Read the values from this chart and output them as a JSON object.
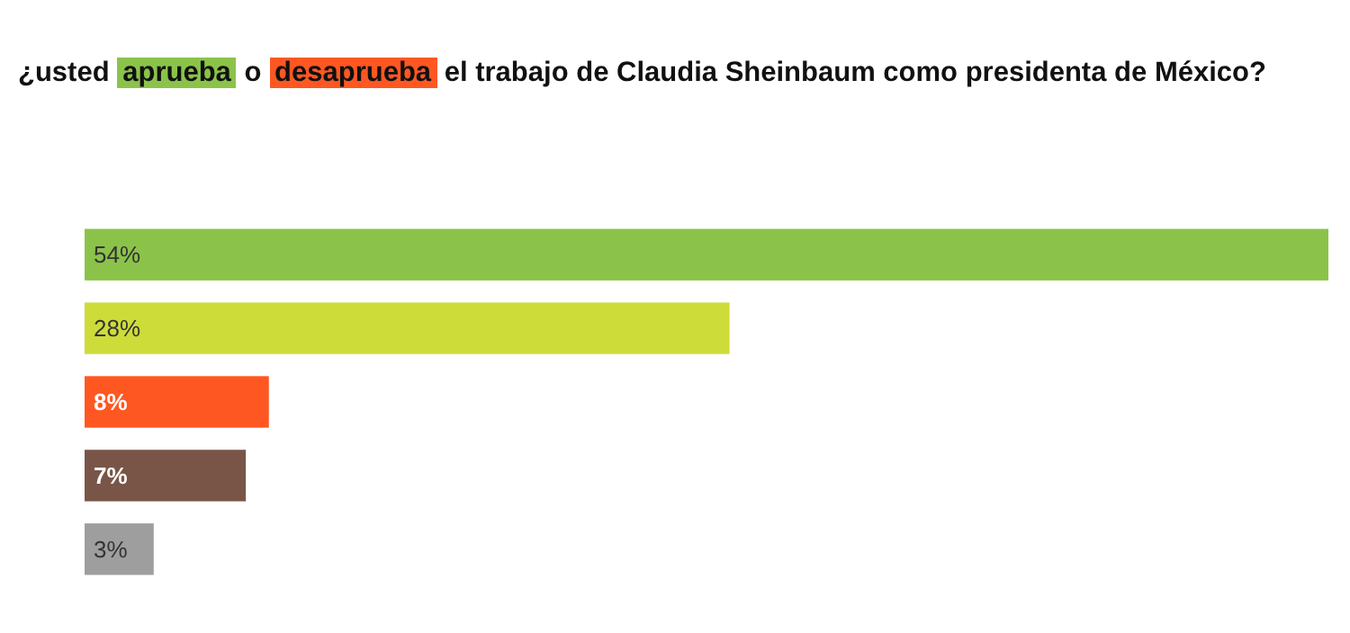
{
  "chart_data": {
    "type": "bar",
    "orientation": "horizontal",
    "title": "¿usted aprueba o desaprueba el trabajo de Claudia Sheinbaum como presidenta de México?",
    "categories": [
      null,
      null,
      null,
      null,
      null
    ],
    "values": [
      54,
      28,
      8,
      7,
      3
    ],
    "colors": [
      "#8bc34a",
      "#cddc39",
      "#ff5722",
      "#795548",
      "#9e9e9e"
    ],
    "value_labels": [
      "54%",
      "28%",
      "8%",
      "7%",
      "3%"
    ]
  }
}
